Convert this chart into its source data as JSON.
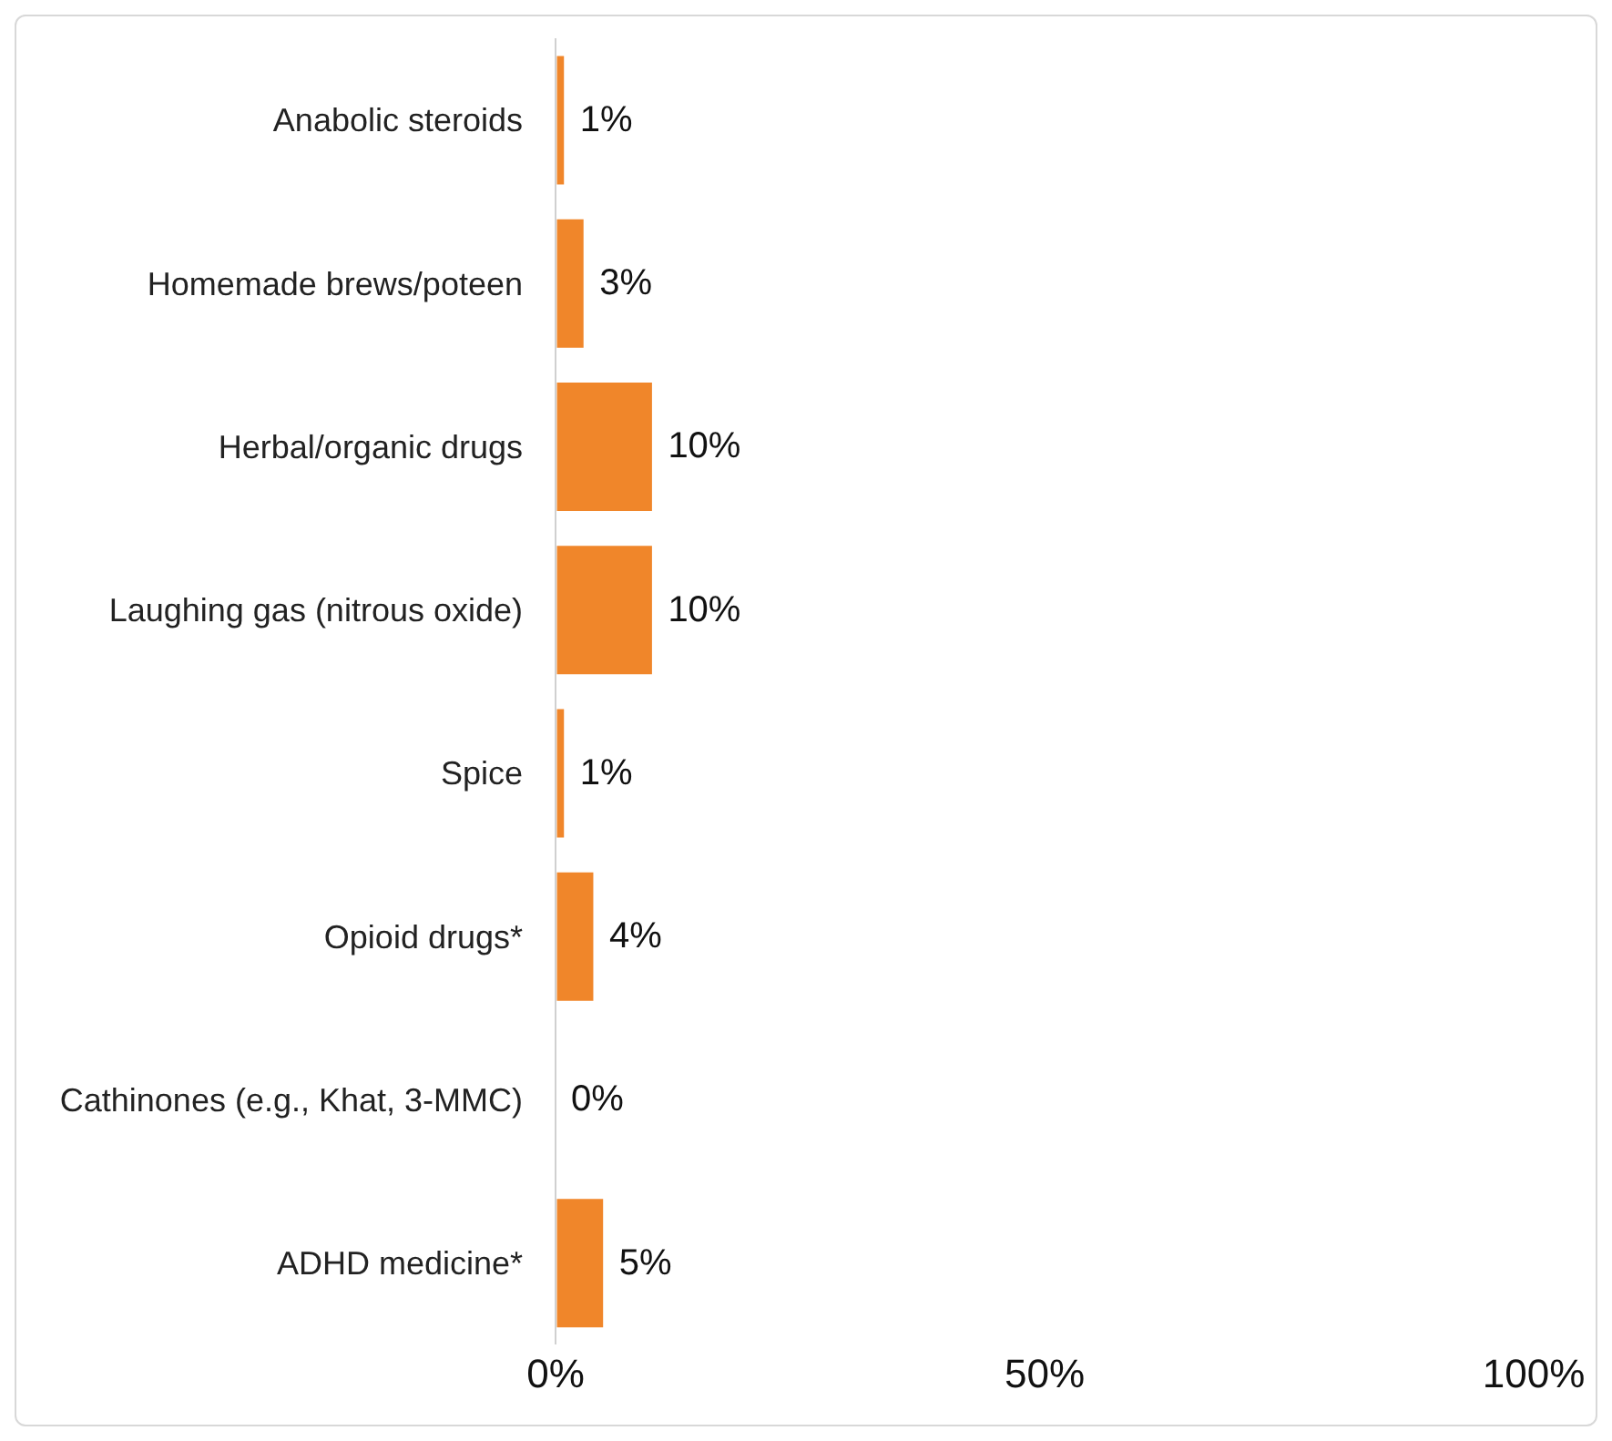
{
  "chart_data": {
    "type": "bar",
    "orientation": "horizontal",
    "categories": [
      "Anabolic steroids",
      "Homemade brews/poteen",
      "Herbal/organic drugs",
      "Laughing gas (nitrous oxide)",
      "Spice",
      "Opioid drugs*",
      "Cathinones (e.g., Khat, 3-MMC)",
      "ADHD medicine*"
    ],
    "values": [
      1,
      3,
      10,
      10,
      1,
      4,
      0,
      5
    ],
    "value_labels": [
      "1%",
      "3%",
      "10%",
      "10%",
      "1%",
      "4%",
      "0%",
      "5%"
    ],
    "color": "#f0862a",
    "xlim": [
      0,
      100
    ],
    "xticks": [
      {
        "value": 0,
        "label": "0%"
      },
      {
        "value": 50,
        "label": "50%"
      },
      {
        "value": 100,
        "label": "100%"
      }
    ],
    "grid": false
  }
}
